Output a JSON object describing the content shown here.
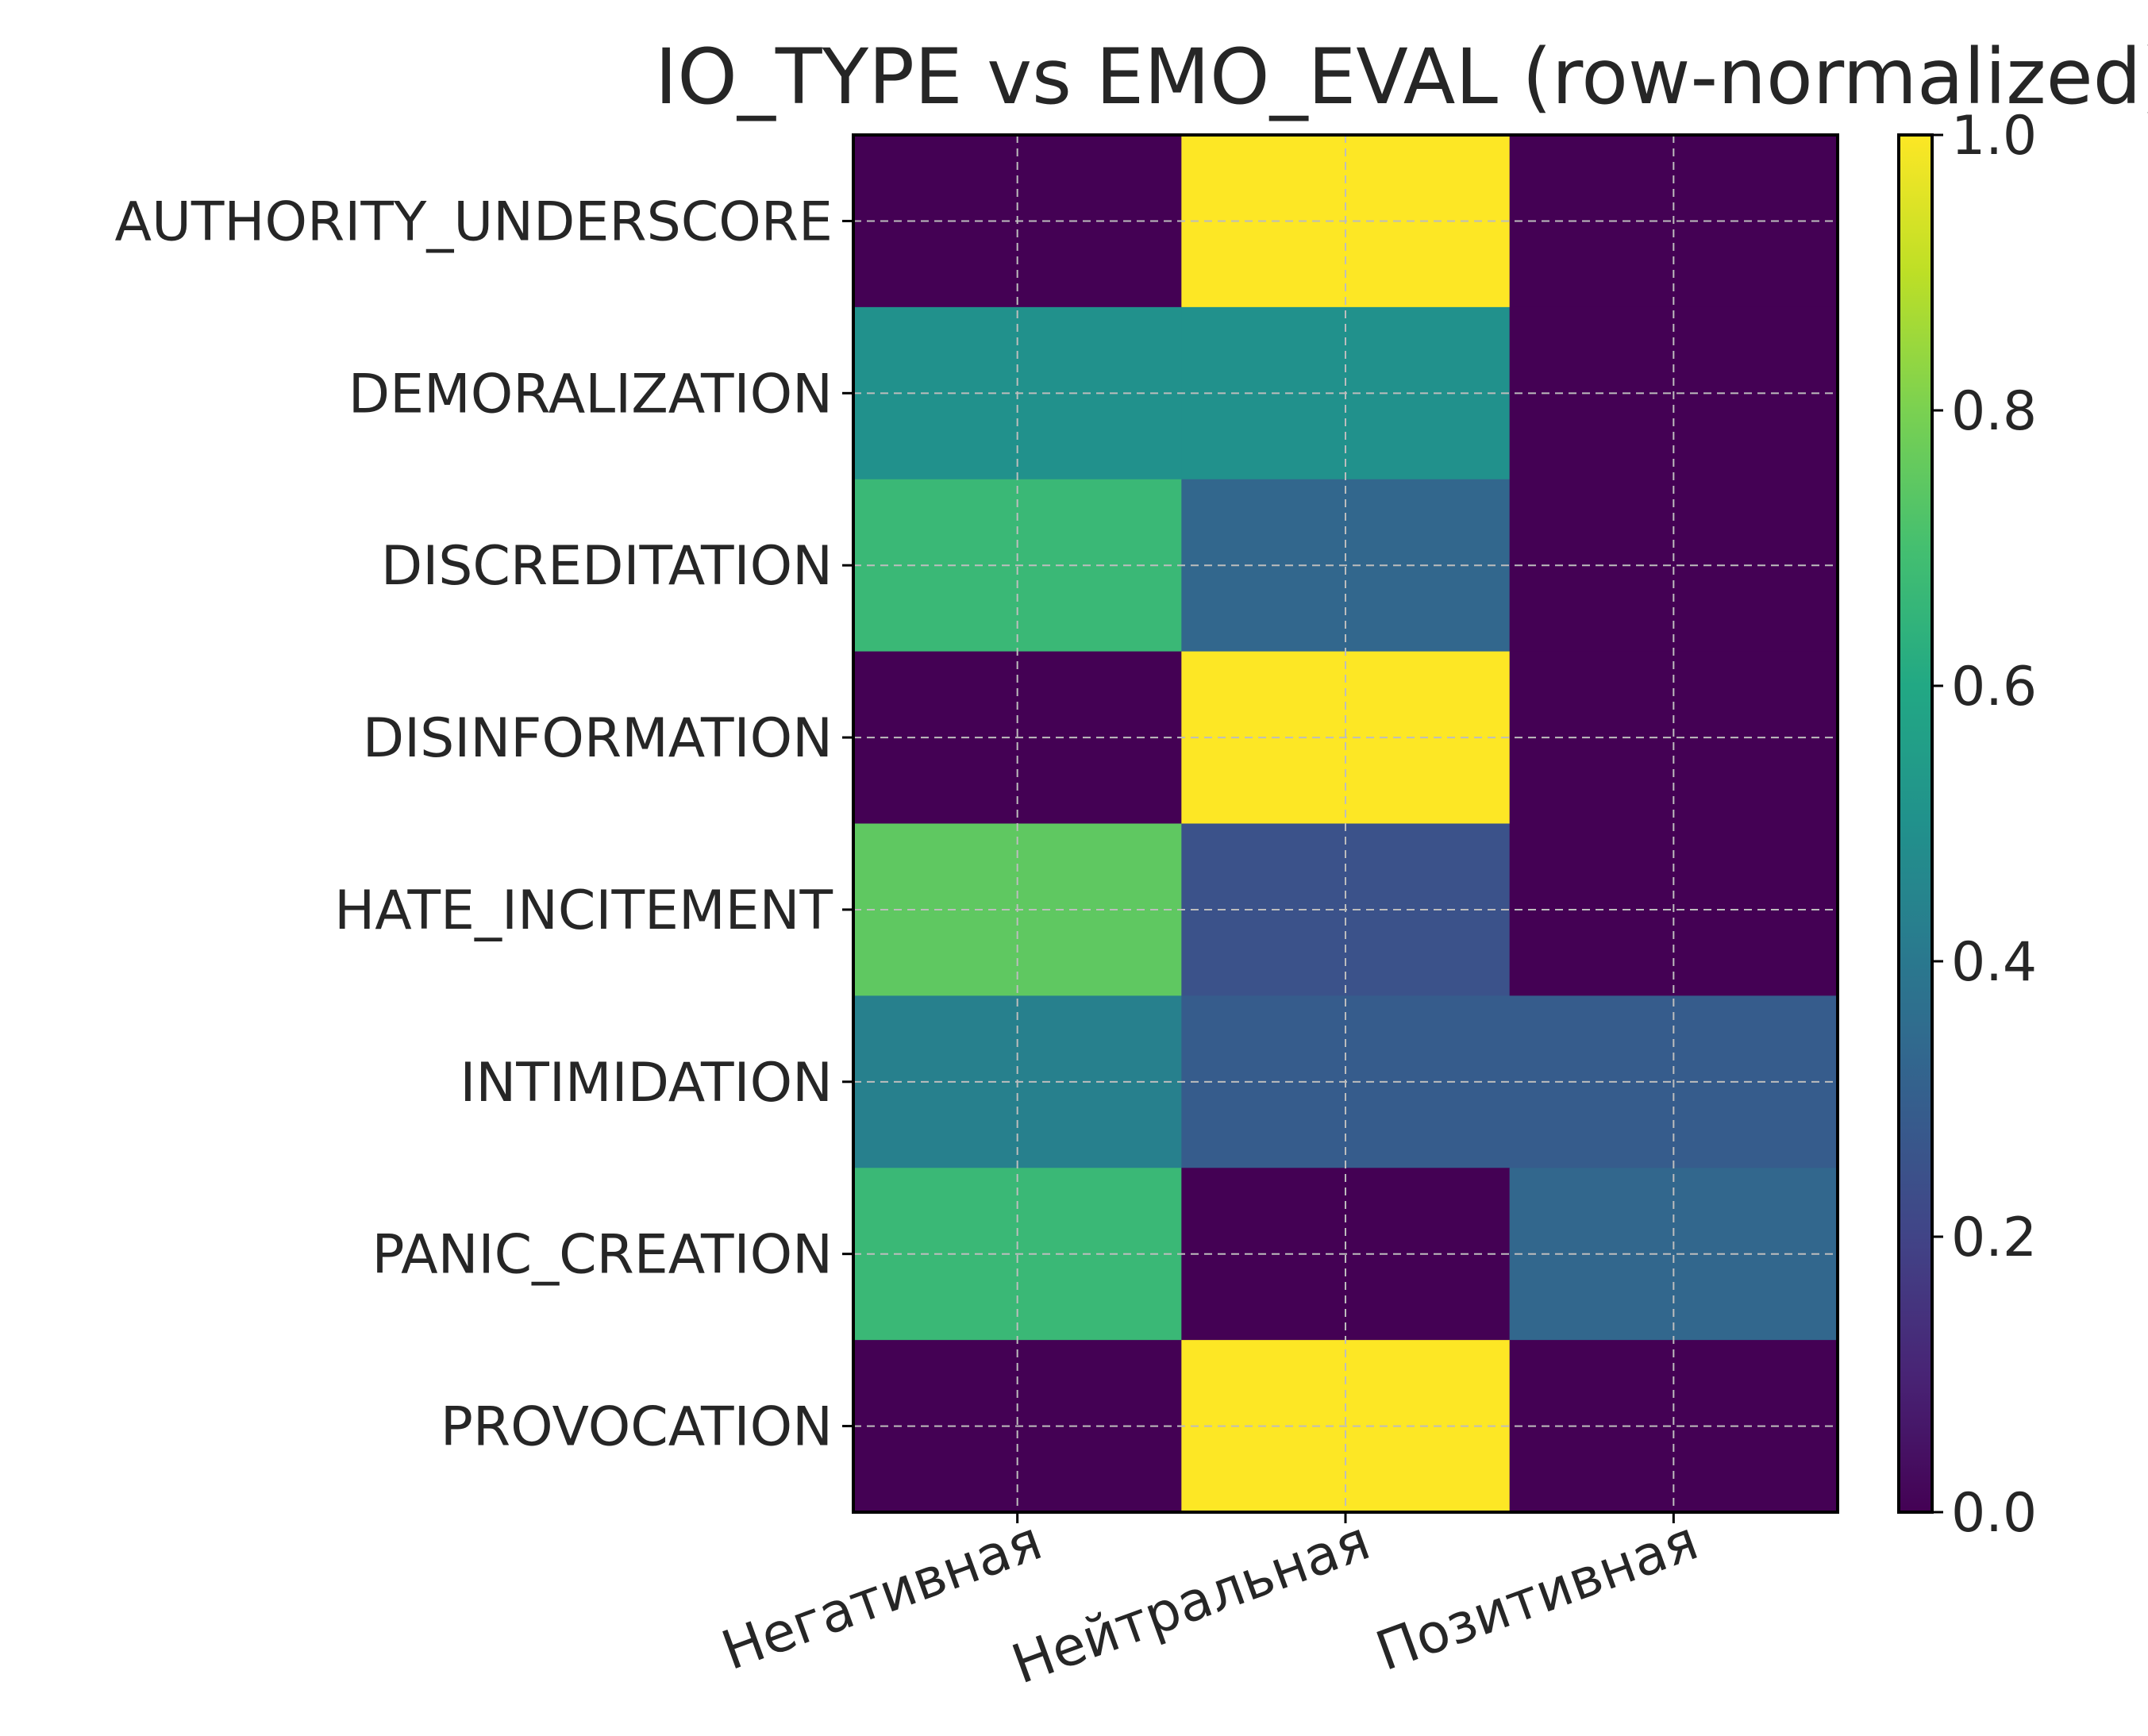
{
  "chart_data": {
    "type": "heatmap",
    "title": "IO_TYPE vs EMO_EVAL (row-normalized)",
    "xlabel": "",
    "ylabel": "",
    "rows": [
      "AUTHORITY_UNDERSCORE",
      "DEMORALIZATION",
      "DISCREDITATION",
      "DISINFORMATION",
      "HATE_INCITEMENT",
      "INTIMIDATION",
      "PANIC_CREATION",
      "PROVOCATION"
    ],
    "columns": [
      "Негативная",
      "Нейтральная",
      "Позитивная"
    ],
    "values": [
      [
        0.0,
        1.0,
        0.0
      ],
      [
        0.5,
        0.5,
        0.0
      ],
      [
        0.67,
        0.33,
        0.0
      ],
      [
        0.0,
        1.0,
        0.0
      ],
      [
        0.75,
        0.25,
        0.0
      ],
      [
        0.43,
        0.29,
        0.29
      ],
      [
        0.67,
        0.0,
        0.33
      ],
      [
        0.0,
        1.0,
        0.0
      ]
    ],
    "colorbar": {
      "range": [
        0.0,
        1.0
      ],
      "ticks": [
        "0.0",
        "0.2",
        "0.4",
        "0.6",
        "0.8",
        "1.0"
      ],
      "colormap": "viridis"
    },
    "grid": true
  }
}
